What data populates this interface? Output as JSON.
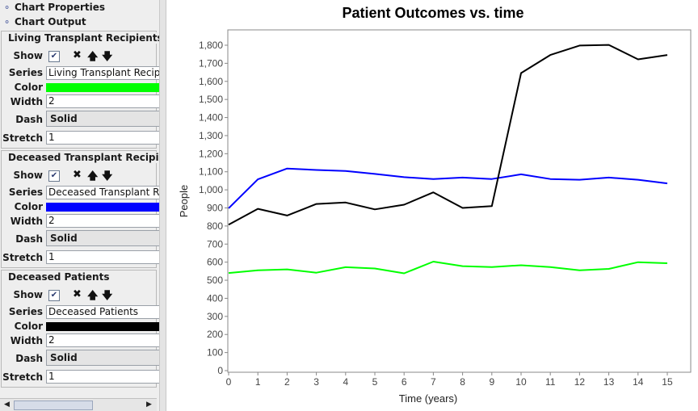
{
  "sidebar": {
    "tree": [
      {
        "label": "Chart Properties",
        "icon": "key-icon"
      },
      {
        "label": "Chart Output",
        "icon": "key-icon"
      }
    ],
    "field_labels": {
      "show": "Show",
      "series": "Series",
      "color": "Color",
      "width": "Width",
      "dash": "Dash",
      "stretch": "Stretch"
    },
    "sections": [
      {
        "title": "Living Transplant Recipients",
        "series": "Living Transplant Recipie",
        "color": "#00ff00",
        "width": "2",
        "dash": "Solid",
        "stretch": "1",
        "show": true
      },
      {
        "title": "Deceased Transplant Recipients",
        "series": "Deceased Transplant Re",
        "color": "#0000ff",
        "width": "2",
        "dash": "Solid",
        "stretch": "1",
        "show": true
      },
      {
        "title": "Deceased Patients",
        "series": "Deceased Patients",
        "color": "#000000",
        "width": "2",
        "dash": "Solid",
        "stretch": "1",
        "show": true
      }
    ],
    "icons": {
      "checkbox": "✔",
      "delete": "✖",
      "up": "🡅",
      "down": "🡇",
      "scroll_left": "◀",
      "scroll_right": "▶"
    }
  },
  "chart_data": {
    "type": "line",
    "title": "Patient Outcomes vs. time",
    "xlabel": "Time (years)",
    "ylabel": "People",
    "x": [
      0,
      1,
      2,
      3,
      4,
      5,
      6,
      7,
      8,
      9,
      10,
      11,
      12,
      13,
      14,
      15
    ],
    "xlim": [
      0,
      15.8
    ],
    "ylim": [
      0,
      1900
    ],
    "yticks": [
      0,
      100,
      200,
      300,
      400,
      500,
      600,
      700,
      800,
      900,
      1000,
      1100,
      1200,
      1300,
      1400,
      1500,
      1600,
      1700,
      1800
    ],
    "ytick_labels": [
      "0",
      "100",
      "200",
      "300",
      "400",
      "500",
      "600",
      "700",
      "800",
      "900",
      "1,000",
      "1,100",
      "1,200",
      "1,300",
      "1,400",
      "1,500",
      "1,600",
      "1,700",
      "1,800"
    ],
    "grid": false,
    "legend": "none",
    "series": [
      {
        "name": "Living Transplant Recipients",
        "color": "#00ff00",
        "values": [
          540,
          555,
          560,
          542,
          572,
          565,
          538,
          603,
          578,
          573,
          583,
          573,
          555,
          563,
          600,
          594
        ]
      },
      {
        "name": "Deceased Transplant Recipients",
        "color": "#0000ff",
        "values": [
          898,
          1058,
          1118,
          1110,
          1104,
          1088,
          1070,
          1060,
          1068,
          1060,
          1086,
          1060,
          1056,
          1068,
          1056,
          1036
        ]
      },
      {
        "name": "Deceased Patients",
        "color": "#000000",
        "values": [
          807,
          895,
          858,
          922,
          930,
          892,
          918,
          986,
          900,
          910,
          1646,
          1746,
          1798,
          1802,
          1722,
          1746
        ]
      }
    ]
  }
}
